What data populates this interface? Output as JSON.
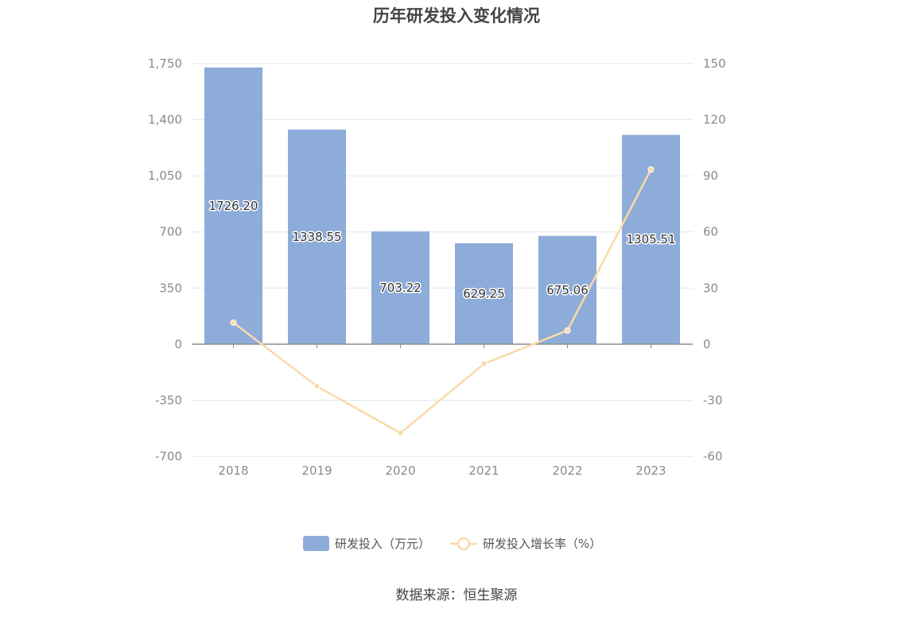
{
  "chart_data": {
    "type": "bar",
    "title": "历年研发投入变化情况",
    "categories": [
      "2018",
      "2019",
      "2020",
      "2021",
      "2022",
      "2023"
    ],
    "series": [
      {
        "name": "研发投入（万元）",
        "type": "bar",
        "axis": "left",
        "values": [
          1726.2,
          1338.55,
          703.22,
          629.25,
          675.06,
          1305.51
        ],
        "labels": [
          "1726.20",
          "1338.55",
          "703.22",
          "629.25",
          "675.06",
          "1305.51"
        ],
        "color": "#8eacd9"
      },
      {
        "name": "研发投入增长率（%）",
        "type": "line",
        "axis": "right",
        "values": [
          11.5,
          -22.5,
          -47.5,
          -10.5,
          7.3,
          93.4
        ],
        "color": "#f8dba6"
      }
    ],
    "y_left": {
      "ylim": [
        -700,
        1750
      ],
      "ticks": [
        1750,
        1400,
        1050,
        700,
        350,
        0,
        -350,
        -700
      ],
      "tick_labels": [
        "1,750",
        "1,400",
        "1,050",
        "700",
        "350",
        "0",
        "-350",
        "-700"
      ]
    },
    "y_right": {
      "ylim": [
        -60,
        150
      ],
      "ticks": [
        150,
        120,
        90,
        60,
        30,
        0,
        -30,
        -60
      ],
      "tick_labels": [
        "150",
        "120",
        "90",
        "60",
        "30",
        "0",
        "-30",
        "-60"
      ]
    },
    "grid": true,
    "legend_position": "bottom-center"
  },
  "source_text": "数据来源：恒生聚源"
}
